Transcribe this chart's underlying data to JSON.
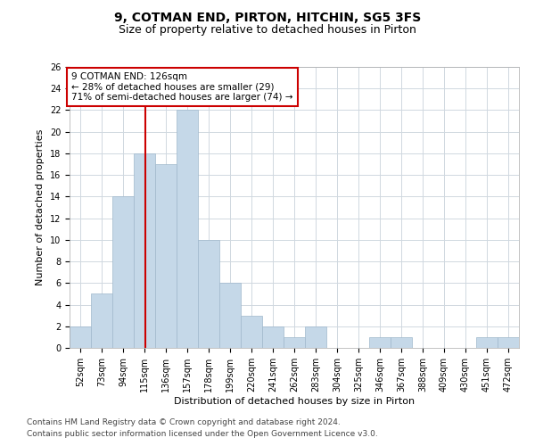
{
  "title": "9, COTMAN END, PIRTON, HITCHIN, SG5 3FS",
  "subtitle": "Size of property relative to detached houses in Pirton",
  "xlabel": "Distribution of detached houses by size in Pirton",
  "ylabel": "Number of detached properties",
  "bin_labels": [
    "52sqm",
    "73sqm",
    "94sqm",
    "115sqm",
    "136sqm",
    "157sqm",
    "178sqm",
    "199sqm",
    "220sqm",
    "241sqm",
    "262sqm",
    "283sqm",
    "304sqm",
    "325sqm",
    "346sqm",
    "367sqm",
    "388sqm",
    "409sqm",
    "430sqm",
    "451sqm",
    "472sqm"
  ],
  "bin_edges": [
    52,
    73,
    94,
    115,
    136,
    157,
    178,
    199,
    220,
    241,
    262,
    283,
    304,
    325,
    346,
    367,
    388,
    409,
    430,
    451,
    472
  ],
  "bar_values": [
    2,
    5,
    14,
    18,
    17,
    22,
    10,
    6,
    3,
    2,
    1,
    2,
    0,
    0,
    1,
    1,
    0,
    0,
    0,
    1,
    1
  ],
  "bar_color": "#c5d8e8",
  "bar_edgecolor": "#a0b8cc",
  "grid_color": "#d0d8e0",
  "reference_line_x": 126,
  "reference_line_color": "#cc0000",
  "annotation_box_text": "9 COTMAN END: 126sqm\n← 28% of detached houses are smaller (29)\n71% of semi-detached houses are larger (74) →",
  "annotation_box_facecolor": "white",
  "annotation_box_edgecolor": "#cc0000",
  "ylim": [
    0,
    26
  ],
  "yticks": [
    0,
    2,
    4,
    6,
    8,
    10,
    12,
    14,
    16,
    18,
    20,
    22,
    24,
    26
  ],
  "footnote1": "Contains HM Land Registry data © Crown copyright and database right 2024.",
  "footnote2": "Contains public sector information licensed under the Open Government Licence v3.0.",
  "title_fontsize": 10,
  "subtitle_fontsize": 9,
  "annotation_fontsize": 7.5,
  "axis_label_fontsize": 8,
  "tick_fontsize": 7,
  "footnote_fontsize": 6.5
}
